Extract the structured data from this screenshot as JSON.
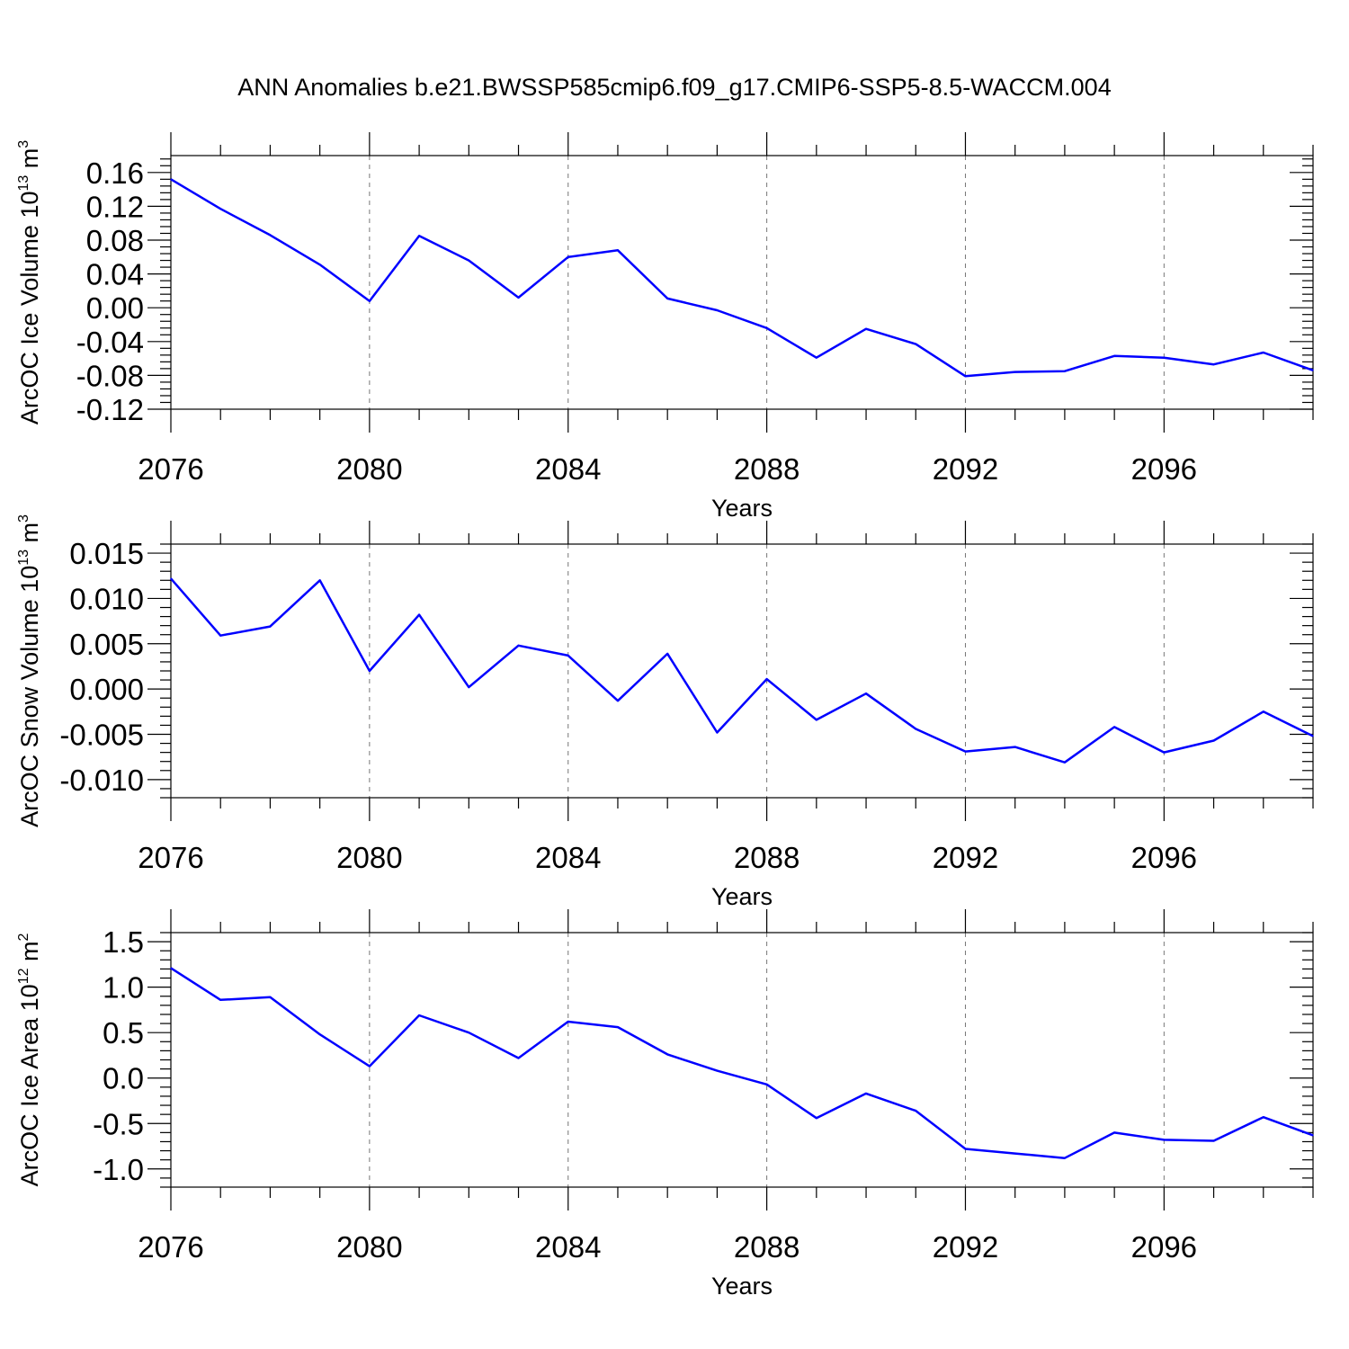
{
  "title": "ANN Anomalies b.e21.BWSSP585cmip6.f09_g17.CMIP6-SSP5-8.5-WACCM.004",
  "colors": {
    "line": "#0000ff",
    "frame": "#000000",
    "grid": "#777777"
  },
  "chart_data": [
    {
      "type": "line",
      "ylabel_main": "ArcOC Ice Volume 10",
      "ylabel_exp": "13",
      "ylabel_unit": " m",
      "ylabel_unit_exp": "3",
      "xlabel": "Years",
      "xlim": [
        2076,
        2099
      ],
      "ylim": [
        -0.12,
        0.18
      ],
      "grid": "vertical dashed at labeled years",
      "x_ticks": [
        2076,
        2080,
        2084,
        2088,
        2092,
        2096
      ],
      "x_tick_labels": [
        "2076",
        "2080",
        "2084",
        "2088",
        "2092",
        "2096"
      ],
      "y_ticks": [
        -0.12,
        -0.08,
        -0.04,
        0.0,
        0.04,
        0.08,
        0.12,
        0.16
      ],
      "y_tick_labels": [
        "-0.12",
        "-0.08",
        "-0.04",
        "0.00",
        "0.04",
        "0.08",
        "0.12",
        "0.16"
      ],
      "x": [
        2076,
        2077,
        2078,
        2079,
        2080,
        2081,
        2082,
        2083,
        2084,
        2085,
        2086,
        2087,
        2088,
        2089,
        2090,
        2091,
        2092,
        2093,
        2094,
        2095,
        2096,
        2097,
        2098,
        2099
      ],
      "values": [
        0.152,
        0.117,
        0.086,
        0.051,
        0.008,
        0.085,
        0.056,
        0.012,
        0.06,
        0.068,
        0.011,
        -0.003,
        -0.024,
        -0.059,
        -0.025,
        -0.043,
        -0.081,
        -0.076,
        -0.075,
        -0.057,
        -0.059,
        -0.067,
        -0.053,
        -0.074
      ]
    },
    {
      "type": "line",
      "ylabel_main": "ArcOC Snow Volume 10",
      "ylabel_exp": "13",
      "ylabel_unit": " m",
      "ylabel_unit_exp": "3",
      "xlabel": "Years",
      "xlim": [
        2076,
        2099
      ],
      "ylim": [
        -0.012,
        0.016
      ],
      "grid": "vertical dashed at labeled years",
      "x_ticks": [
        2076,
        2080,
        2084,
        2088,
        2092,
        2096
      ],
      "x_tick_labels": [
        "2076",
        "2080",
        "2084",
        "2088",
        "2092",
        "2096"
      ],
      "y_ticks": [
        -0.01,
        -0.005,
        0.0,
        0.005,
        0.01,
        0.015
      ],
      "y_tick_labels": [
        "-0.010",
        "-0.005",
        "0.000",
        "0.005",
        "0.010",
        "0.015"
      ],
      "x": [
        2076,
        2077,
        2078,
        2079,
        2080,
        2081,
        2082,
        2083,
        2084,
        2085,
        2086,
        2087,
        2088,
        2089,
        2090,
        2091,
        2092,
        2093,
        2094,
        2095,
        2096,
        2097,
        2098,
        2099
      ],
      "values": [
        0.0122,
        0.0059,
        0.0069,
        0.012,
        0.002,
        0.0082,
        0.0002,
        0.0048,
        0.0037,
        -0.0013,
        0.0039,
        -0.0048,
        0.0011,
        -0.0034,
        -0.0005,
        -0.0044,
        -0.0069,
        -0.0064,
        -0.0081,
        -0.0042,
        -0.007,
        -0.0057,
        -0.0025,
        -0.0052
      ]
    },
    {
      "type": "line",
      "ylabel_main": "ArcOC Ice Area 10",
      "ylabel_exp": "12",
      "ylabel_unit": " m",
      "ylabel_unit_exp": "2",
      "xlabel": "Years",
      "xlim": [
        2076,
        2099
      ],
      "ylim": [
        -1.2,
        1.6
      ],
      "grid": "vertical dashed at labeled years",
      "x_ticks": [
        2076,
        2080,
        2084,
        2088,
        2092,
        2096
      ],
      "x_tick_labels": [
        "2076",
        "2080",
        "2084",
        "2088",
        "2092",
        "2096"
      ],
      "y_ticks": [
        -1.0,
        -0.5,
        0.0,
        0.5,
        1.0,
        1.5
      ],
      "y_tick_labels": [
        "-1.0",
        "-0.5",
        "0.0",
        "0.5",
        "1.0",
        "1.5"
      ],
      "x": [
        2076,
        2077,
        2078,
        2079,
        2080,
        2081,
        2082,
        2083,
        2084,
        2085,
        2086,
        2087,
        2088,
        2089,
        2090,
        2091,
        2092,
        2093,
        2094,
        2095,
        2096,
        2097,
        2098,
        2099
      ],
      "values": [
        1.21,
        0.86,
        0.89,
        0.48,
        0.13,
        0.69,
        0.5,
        0.22,
        0.62,
        0.56,
        0.26,
        0.08,
        -0.07,
        -0.44,
        -0.17,
        -0.36,
        -0.78,
        -0.83,
        -0.88,
        -0.6,
        -0.68,
        -0.69,
        -0.43,
        -0.63
      ]
    }
  ]
}
